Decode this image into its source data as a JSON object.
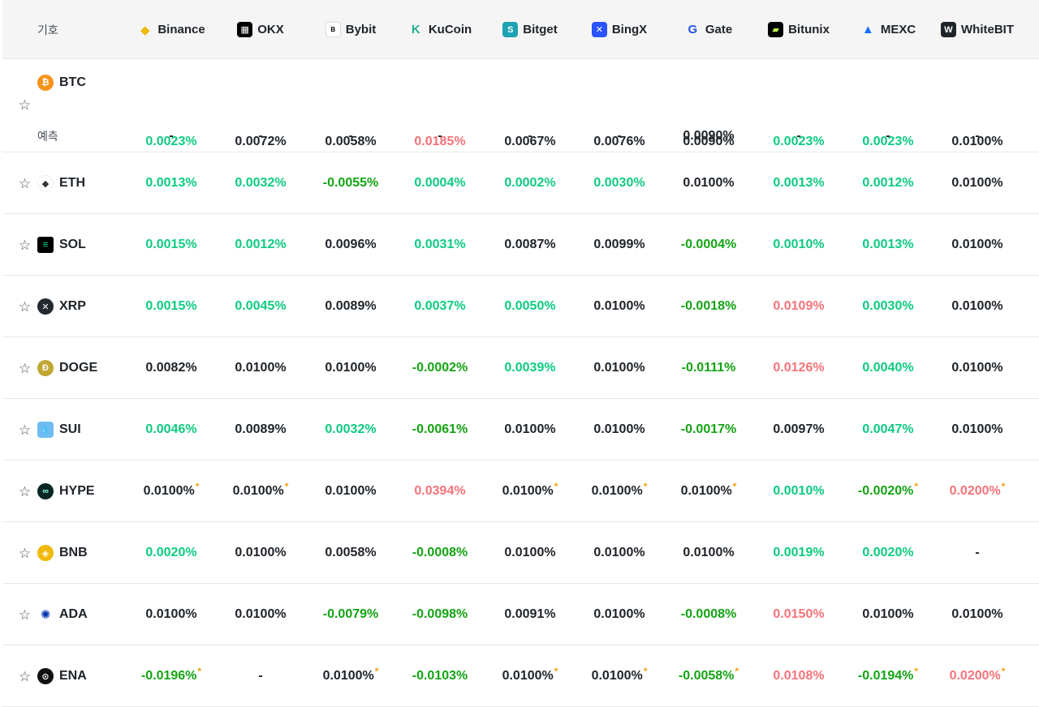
{
  "header": {
    "symbol_label": "기호",
    "exchanges": [
      {
        "name": "Binance",
        "icon": "binance-logo",
        "color": "#f0b90b"
      },
      {
        "name": "OKX",
        "icon": "okx-logo",
        "color": "#000000"
      },
      {
        "name": "Bybit",
        "icon": "bybit-logo",
        "color": "#000000"
      },
      {
        "name": "KuCoin",
        "icon": "kucoin-logo",
        "color": "#23af91"
      },
      {
        "name": "Bitget",
        "icon": "bitget-logo",
        "color": "#1da2b4"
      },
      {
        "name": "BingX",
        "icon": "bingx-logo",
        "color": "#2a54ff"
      },
      {
        "name": "Gate",
        "icon": "gate-logo",
        "color": "#2354e6"
      },
      {
        "name": "Bitunix",
        "icon": "bitunix-logo",
        "color": "#000000"
      },
      {
        "name": "MEXC",
        "icon": "mexc-logo",
        "color": "#1972f5"
      },
      {
        "name": "WhiteBIT",
        "icon": "whitebit-logo",
        "color": "#1e2329"
      }
    ]
  },
  "colors": {
    "positive": "#0ecb81",
    "negative": "#13a413",
    "high": "#f6737a",
    "neutral": "#1e2329",
    "asterisk": "#f0a20b"
  },
  "predict_label": "예측",
  "rows": [
    {
      "symbol": "BTC",
      "icon": "bitcoin-icon",
      "icon_color": "#f7931a",
      "rates": [
        [
          "0.0023%",
          "pos",
          false
        ],
        [
          "0.0072%",
          "neu",
          false
        ],
        [
          "0.0058%",
          "neu",
          false
        ],
        [
          "0.0185%",
          "hot",
          false
        ],
        [
          "0.0067%",
          "neu",
          false
        ],
        [
          "0.0076%",
          "neu",
          false
        ],
        [
          "0.0090%",
          "neu",
          false
        ],
        [
          "0.0023%",
          "pos",
          false
        ],
        [
          "0.0023%",
          "pos",
          false
        ],
        [
          "0.0100%",
          "neu",
          false
        ]
      ],
      "predicted": [
        "-",
        "-",
        "-",
        "-",
        "-",
        "-",
        "0.0090%",
        "-",
        "-",
        "-"
      ]
    },
    {
      "symbol": "ETH",
      "icon": "ethereum-icon",
      "icon_color": "#ffffff",
      "rates": [
        [
          "0.0013%",
          "pos",
          false
        ],
        [
          "0.0032%",
          "pos",
          false
        ],
        [
          "-0.0055%",
          "neg",
          false
        ],
        [
          "0.0004%",
          "pos",
          false
        ],
        [
          "0.0002%",
          "pos",
          false
        ],
        [
          "0.0030%",
          "pos",
          false
        ],
        [
          "0.0100%",
          "neu",
          false
        ],
        [
          "0.0013%",
          "pos",
          false
        ],
        [
          "0.0012%",
          "pos",
          false
        ],
        [
          "0.0100%",
          "neu",
          false
        ]
      ]
    },
    {
      "symbol": "SOL",
      "icon": "solana-icon",
      "icon_color": "#000000",
      "rates": [
        [
          "0.0015%",
          "pos",
          false
        ],
        [
          "0.0012%",
          "pos",
          false
        ],
        [
          "0.0096%",
          "neu",
          false
        ],
        [
          "0.0031%",
          "pos",
          false
        ],
        [
          "0.0087%",
          "neu",
          false
        ],
        [
          "0.0099%",
          "neu",
          false
        ],
        [
          "-0.0004%",
          "neg",
          false
        ],
        [
          "0.0010%",
          "pos",
          false
        ],
        [
          "0.0013%",
          "pos",
          false
        ],
        [
          "0.0100%",
          "neu",
          false
        ]
      ]
    },
    {
      "symbol": "XRP",
      "icon": "xrp-icon",
      "icon_color": "#23292f",
      "rates": [
        [
          "0.0015%",
          "pos",
          false
        ],
        [
          "0.0045%",
          "pos",
          false
        ],
        [
          "0.0089%",
          "neu",
          false
        ],
        [
          "0.0037%",
          "pos",
          false
        ],
        [
          "0.0050%",
          "pos",
          false
        ],
        [
          "0.0100%",
          "neu",
          false
        ],
        [
          "-0.0018%",
          "neg",
          false
        ],
        [
          "0.0109%",
          "hot",
          false
        ],
        [
          "0.0030%",
          "pos",
          false
        ],
        [
          "0.0100%",
          "neu",
          false
        ]
      ]
    },
    {
      "symbol": "DOGE",
      "icon": "dogecoin-icon",
      "icon_color": "#c2a633",
      "rates": [
        [
          "0.0082%",
          "neu",
          false
        ],
        [
          "0.0100%",
          "neu",
          false
        ],
        [
          "0.0100%",
          "neu",
          false
        ],
        [
          "-0.0002%",
          "neg",
          false
        ],
        [
          "0.0039%",
          "pos",
          false
        ],
        [
          "0.0100%",
          "neu",
          false
        ],
        [
          "-0.0111%",
          "neg",
          false
        ],
        [
          "0.0126%",
          "hot",
          false
        ],
        [
          "0.0040%",
          "pos",
          false
        ],
        [
          "0.0100%",
          "neu",
          false
        ]
      ]
    },
    {
      "symbol": "SUI",
      "icon": "sui-icon",
      "icon_color": "#6fbcf0",
      "rates": [
        [
          "0.0046%",
          "pos",
          false
        ],
        [
          "0.0089%",
          "neu",
          false
        ],
        [
          "0.0032%",
          "pos",
          false
        ],
        [
          "-0.0061%",
          "neg",
          false
        ],
        [
          "0.0100%",
          "neu",
          false
        ],
        [
          "0.0100%",
          "neu",
          false
        ],
        [
          "-0.0017%",
          "neg",
          false
        ],
        [
          "0.0097%",
          "neu",
          false
        ],
        [
          "0.0047%",
          "pos",
          false
        ],
        [
          "0.0100%",
          "neu",
          false
        ]
      ]
    },
    {
      "symbol": "HYPE",
      "icon": "hyperliquid-icon",
      "icon_color": "#072723",
      "rates": [
        [
          "0.0100%",
          "neu",
          true
        ],
        [
          "0.0100%",
          "neu",
          true
        ],
        [
          "0.0100%",
          "neu",
          false
        ],
        [
          "0.0394%",
          "hot",
          false
        ],
        [
          "0.0100%",
          "neu",
          true
        ],
        [
          "0.0100%",
          "neu",
          true
        ],
        [
          "0.0100%",
          "neu",
          true
        ],
        [
          "0.0010%",
          "pos",
          false
        ],
        [
          "-0.0020%",
          "neg",
          true
        ],
        [
          "0.0200%",
          "hot",
          true
        ]
      ]
    },
    {
      "symbol": "BNB",
      "icon": "bnb-icon",
      "icon_color": "#f0b90b",
      "rates": [
        [
          "0.0020%",
          "pos",
          false
        ],
        [
          "0.0100%",
          "neu",
          false
        ],
        [
          "0.0058%",
          "neu",
          false
        ],
        [
          "-0.0008%",
          "neg",
          false
        ],
        [
          "0.0100%",
          "neu",
          false
        ],
        [
          "0.0100%",
          "neu",
          false
        ],
        [
          "0.0100%",
          "neu",
          false
        ],
        [
          "0.0019%",
          "pos",
          false
        ],
        [
          "0.0020%",
          "pos",
          false
        ],
        [
          "-",
          "neu",
          false
        ]
      ]
    },
    {
      "symbol": "ADA",
      "icon": "cardano-icon",
      "icon_color": "#0033ad",
      "rates": [
        [
          "0.0100%",
          "neu",
          false
        ],
        [
          "0.0100%",
          "neu",
          false
        ],
        [
          "-0.0079%",
          "neg",
          false
        ],
        [
          "-0.0098%",
          "neg",
          false
        ],
        [
          "0.0091%",
          "neu",
          false
        ],
        [
          "0.0100%",
          "neu",
          false
        ],
        [
          "-0.0008%",
          "neg",
          false
        ],
        [
          "0.0150%",
          "hot",
          false
        ],
        [
          "0.0100%",
          "neu",
          false
        ],
        [
          "0.0100%",
          "neu",
          false
        ]
      ]
    },
    {
      "symbol": "ENA",
      "icon": "ethena-icon",
      "icon_color": "#111111",
      "rates": [
        [
          "-0.0196%",
          "neg",
          true
        ],
        [
          "-",
          "neu",
          false
        ],
        [
          "0.0100%",
          "neu",
          true
        ],
        [
          "-0.0103%",
          "neg",
          false
        ],
        [
          "0.0100%",
          "neu",
          true
        ],
        [
          "0.0100%",
          "neu",
          true
        ],
        [
          "-0.0058%",
          "neg",
          true
        ],
        [
          "0.0108%",
          "hot",
          false
        ],
        [
          "-0.0194%",
          "neg",
          true
        ],
        [
          "0.0200%",
          "hot",
          true
        ]
      ]
    }
  ]
}
